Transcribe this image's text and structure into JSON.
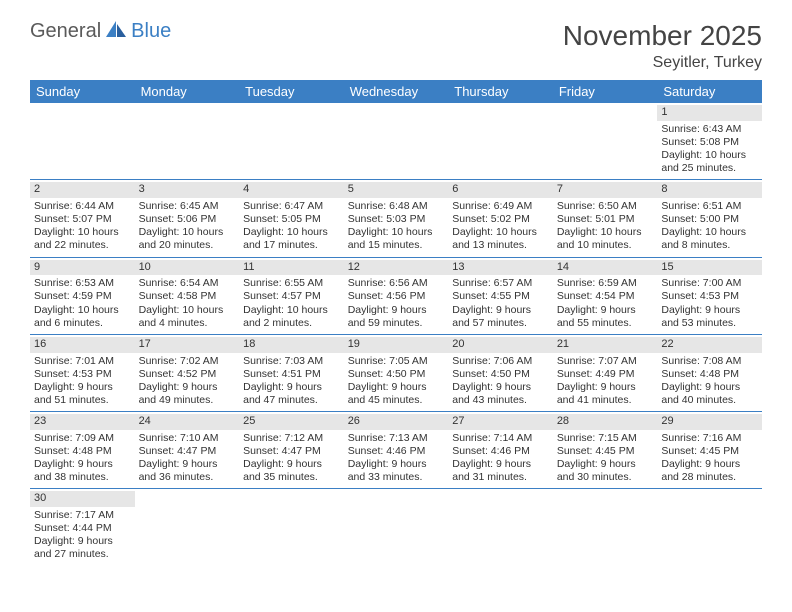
{
  "logo": {
    "text1": "General",
    "text2": "Blue"
  },
  "title": "November 2025",
  "location": "Seyitler, Turkey",
  "colors": {
    "header_bg": "#3b7fc4",
    "header_text": "#ffffff",
    "daynum_bg": "#e6e6e6",
    "row_divider": "#3b7fc4",
    "body_text": "#333333",
    "title_text": "#444444"
  },
  "day_headers": [
    "Sunday",
    "Monday",
    "Tuesday",
    "Wednesday",
    "Thursday",
    "Friday",
    "Saturday"
  ],
  "weeks": [
    [
      null,
      null,
      null,
      null,
      null,
      null,
      {
        "n": "1",
        "sr": "Sunrise: 6:43 AM",
        "ss": "Sunset: 5:08 PM",
        "dl": "Daylight: 10 hours and 25 minutes."
      }
    ],
    [
      {
        "n": "2",
        "sr": "Sunrise: 6:44 AM",
        "ss": "Sunset: 5:07 PM",
        "dl": "Daylight: 10 hours and 22 minutes."
      },
      {
        "n": "3",
        "sr": "Sunrise: 6:45 AM",
        "ss": "Sunset: 5:06 PM",
        "dl": "Daylight: 10 hours and 20 minutes."
      },
      {
        "n": "4",
        "sr": "Sunrise: 6:47 AM",
        "ss": "Sunset: 5:05 PM",
        "dl": "Daylight: 10 hours and 17 minutes."
      },
      {
        "n": "5",
        "sr": "Sunrise: 6:48 AM",
        "ss": "Sunset: 5:03 PM",
        "dl": "Daylight: 10 hours and 15 minutes."
      },
      {
        "n": "6",
        "sr": "Sunrise: 6:49 AM",
        "ss": "Sunset: 5:02 PM",
        "dl": "Daylight: 10 hours and 13 minutes."
      },
      {
        "n": "7",
        "sr": "Sunrise: 6:50 AM",
        "ss": "Sunset: 5:01 PM",
        "dl": "Daylight: 10 hours and 10 minutes."
      },
      {
        "n": "8",
        "sr": "Sunrise: 6:51 AM",
        "ss": "Sunset: 5:00 PM",
        "dl": "Daylight: 10 hours and 8 minutes."
      }
    ],
    [
      {
        "n": "9",
        "sr": "Sunrise: 6:53 AM",
        "ss": "Sunset: 4:59 PM",
        "dl": "Daylight: 10 hours and 6 minutes."
      },
      {
        "n": "10",
        "sr": "Sunrise: 6:54 AM",
        "ss": "Sunset: 4:58 PM",
        "dl": "Daylight: 10 hours and 4 minutes."
      },
      {
        "n": "11",
        "sr": "Sunrise: 6:55 AM",
        "ss": "Sunset: 4:57 PM",
        "dl": "Daylight: 10 hours and 2 minutes."
      },
      {
        "n": "12",
        "sr": "Sunrise: 6:56 AM",
        "ss": "Sunset: 4:56 PM",
        "dl": "Daylight: 9 hours and 59 minutes."
      },
      {
        "n": "13",
        "sr": "Sunrise: 6:57 AM",
        "ss": "Sunset: 4:55 PM",
        "dl": "Daylight: 9 hours and 57 minutes."
      },
      {
        "n": "14",
        "sr": "Sunrise: 6:59 AM",
        "ss": "Sunset: 4:54 PM",
        "dl": "Daylight: 9 hours and 55 minutes."
      },
      {
        "n": "15",
        "sr": "Sunrise: 7:00 AM",
        "ss": "Sunset: 4:53 PM",
        "dl": "Daylight: 9 hours and 53 minutes."
      }
    ],
    [
      {
        "n": "16",
        "sr": "Sunrise: 7:01 AM",
        "ss": "Sunset: 4:53 PM",
        "dl": "Daylight: 9 hours and 51 minutes."
      },
      {
        "n": "17",
        "sr": "Sunrise: 7:02 AM",
        "ss": "Sunset: 4:52 PM",
        "dl": "Daylight: 9 hours and 49 minutes."
      },
      {
        "n": "18",
        "sr": "Sunrise: 7:03 AM",
        "ss": "Sunset: 4:51 PM",
        "dl": "Daylight: 9 hours and 47 minutes."
      },
      {
        "n": "19",
        "sr": "Sunrise: 7:05 AM",
        "ss": "Sunset: 4:50 PM",
        "dl": "Daylight: 9 hours and 45 minutes."
      },
      {
        "n": "20",
        "sr": "Sunrise: 7:06 AM",
        "ss": "Sunset: 4:50 PM",
        "dl": "Daylight: 9 hours and 43 minutes."
      },
      {
        "n": "21",
        "sr": "Sunrise: 7:07 AM",
        "ss": "Sunset: 4:49 PM",
        "dl": "Daylight: 9 hours and 41 minutes."
      },
      {
        "n": "22",
        "sr": "Sunrise: 7:08 AM",
        "ss": "Sunset: 4:48 PM",
        "dl": "Daylight: 9 hours and 40 minutes."
      }
    ],
    [
      {
        "n": "23",
        "sr": "Sunrise: 7:09 AM",
        "ss": "Sunset: 4:48 PM",
        "dl": "Daylight: 9 hours and 38 minutes."
      },
      {
        "n": "24",
        "sr": "Sunrise: 7:10 AM",
        "ss": "Sunset: 4:47 PM",
        "dl": "Daylight: 9 hours and 36 minutes."
      },
      {
        "n": "25",
        "sr": "Sunrise: 7:12 AM",
        "ss": "Sunset: 4:47 PM",
        "dl": "Daylight: 9 hours and 35 minutes."
      },
      {
        "n": "26",
        "sr": "Sunrise: 7:13 AM",
        "ss": "Sunset: 4:46 PM",
        "dl": "Daylight: 9 hours and 33 minutes."
      },
      {
        "n": "27",
        "sr": "Sunrise: 7:14 AM",
        "ss": "Sunset: 4:46 PM",
        "dl": "Daylight: 9 hours and 31 minutes."
      },
      {
        "n": "28",
        "sr": "Sunrise: 7:15 AM",
        "ss": "Sunset: 4:45 PM",
        "dl": "Daylight: 9 hours and 30 minutes."
      },
      {
        "n": "29",
        "sr": "Sunrise: 7:16 AM",
        "ss": "Sunset: 4:45 PM",
        "dl": "Daylight: 9 hours and 28 minutes."
      }
    ],
    [
      {
        "n": "30",
        "sr": "Sunrise: 7:17 AM",
        "ss": "Sunset: 4:44 PM",
        "dl": "Daylight: 9 hours and 27 minutes."
      },
      null,
      null,
      null,
      null,
      null,
      null
    ]
  ]
}
